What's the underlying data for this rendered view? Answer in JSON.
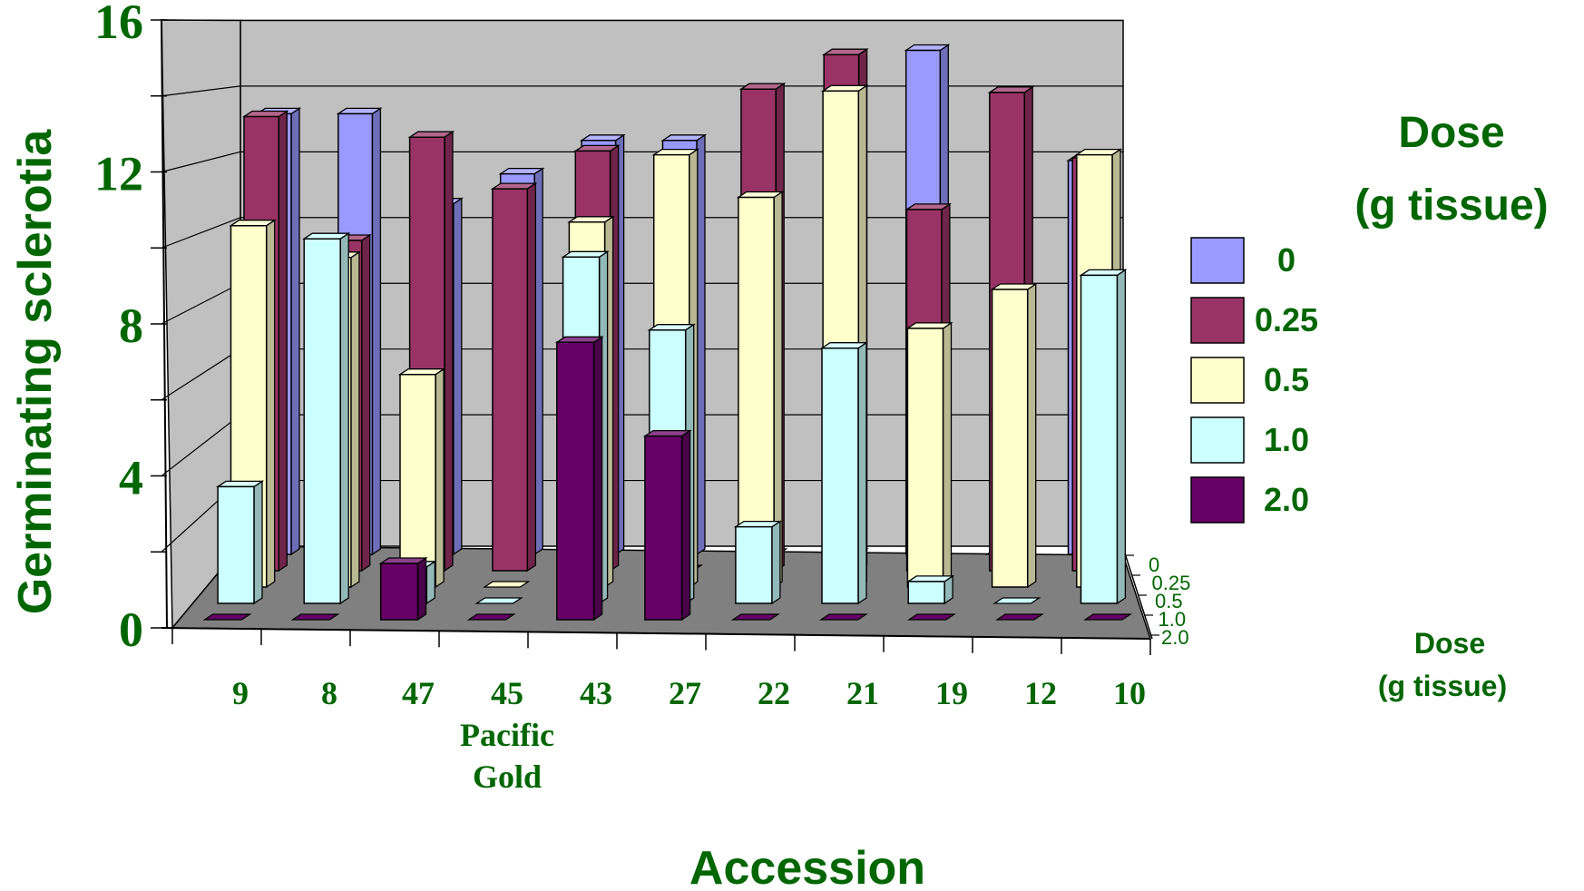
{
  "colors": {
    "dose_0": "#9999FF",
    "dose_025": "#993366",
    "dose_05": "#FFFFCC",
    "dose_10": "#CCFFFF",
    "dose_20": "#660066",
    "label_green": "#006600",
    "wall": "#C0C0C0",
    "floor": "#808080"
  },
  "chart_data": {
    "type": "bar",
    "subtype": "3d-bar",
    "title": "",
    "xlabel": "Accession",
    "ylabel": "Germinating sclerotia",
    "ylim": [
      0,
      16
    ],
    "yticks": [
      "0",
      "4",
      "8",
      "12",
      "16"
    ],
    "categories": [
      "9",
      "8",
      "47",
      "45",
      "43",
      "27",
      "22",
      "21",
      "19",
      "12",
      "10"
    ],
    "category_sublabels": {
      "45": "Pacific Gold"
    },
    "legend": {
      "title": "Dose (g tissue)",
      "title_line1": "Dose",
      "title_line2": "(g tissue)",
      "position": "right"
    },
    "depth_axis": {
      "title": "Dose (g tissue)",
      "title_line1": "Dose",
      "title_line2": "(g tissue)",
      "ticks": [
        "0",
        "0.25",
        "0.5",
        "1.0",
        "2.0"
      ]
    },
    "series": [
      {
        "name": "0",
        "values": [
          13.2,
          13.2,
          10.5,
          11.4,
          12.4,
          12.4,
          0,
          0,
          15.1,
          0,
          11.8
        ]
      },
      {
        "name": "0.25",
        "values": [
          13.2,
          9.6,
          12.6,
          11.1,
          12.2,
          0,
          14.0,
          15.0,
          10.5,
          13.9,
          12.0
        ]
      },
      {
        "name": "0.5",
        "values": [
          10.2,
          9.3,
          6.0,
          0,
          10.3,
          12.2,
          11.0,
          14.0,
          7.3,
          8.4,
          12.2
        ]
      },
      {
        "name": "1.0",
        "values": [
          3.2,
          10.0,
          1.0,
          0,
          9.5,
          7.5,
          2.1,
          7.0,
          0.6,
          0,
          9.0
        ]
      },
      {
        "name": "2.0",
        "values": [
          0,
          0,
          1.5,
          0,
          7.4,
          4.9,
          0,
          0,
          0,
          0,
          0
        ]
      }
    ],
    "grid": true
  }
}
